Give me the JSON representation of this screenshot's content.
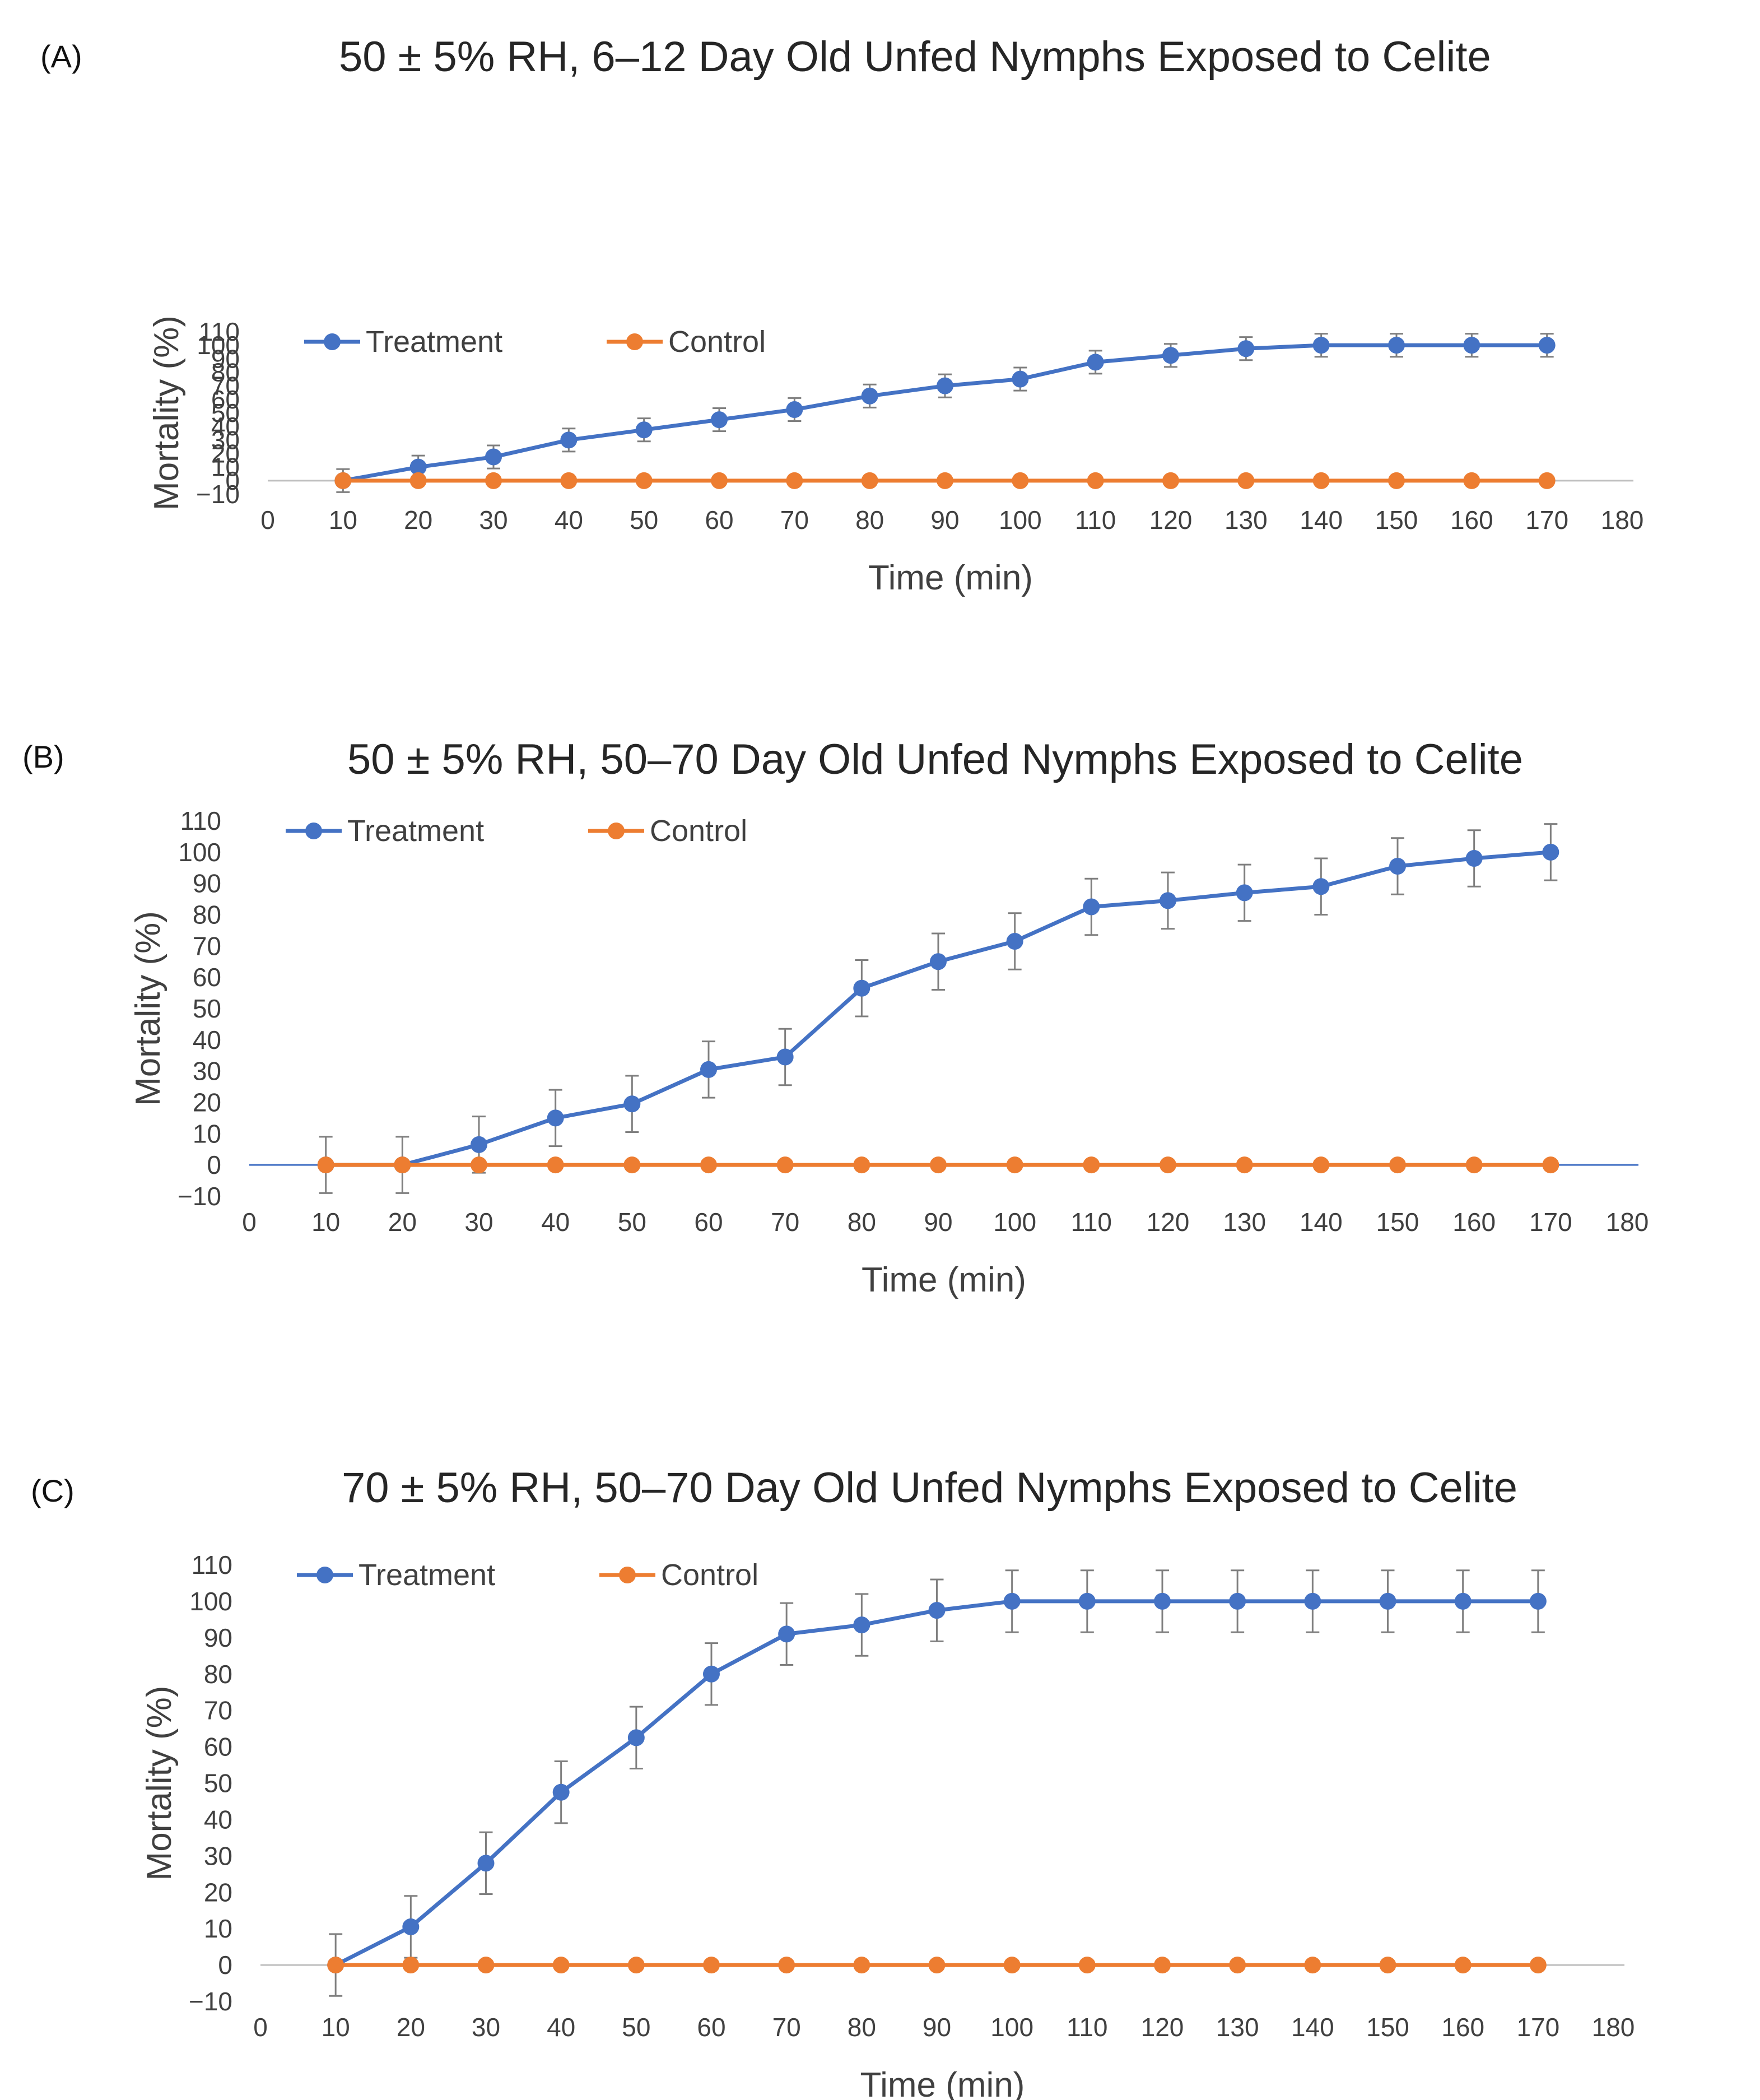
{
  "chart_data": [
    {
      "type": "line",
      "panel_label": "(A)",
      "title": "50 ± 5% RH, 6–12 Day Old Unfed Nymphs Exposed to Celite",
      "xlabel": "Time (min)",
      "ylabel": "Mortality (%)",
      "xlim": [
        0,
        180
      ],
      "ylim": [
        -10,
        110
      ],
      "xticks": [
        0,
        10,
        20,
        30,
        40,
        50,
        60,
        70,
        80,
        90,
        100,
        110,
        120,
        130,
        140,
        150,
        160,
        170,
        180
      ],
      "yticks": [
        -10,
        0,
        10,
        20,
        30,
        40,
        50,
        60,
        70,
        80,
        90,
        100,
        110
      ],
      "x": [
        10,
        20,
        30,
        40,
        50,
        60,
        70,
        80,
        90,
        100,
        110,
        120,
        130,
        140,
        150,
        160,
        170
      ],
      "series": [
        {
          "name": "Treatment",
          "color": "#4472C4",
          "values": [
            0,
            10,
            17.5,
            30,
            37.5,
            45,
            52.5,
            62.5,
            70,
            75,
            87.5,
            92.5,
            97.5,
            100,
            100,
            100,
            100
          ],
          "error": 8.5
        },
        {
          "name": "Control",
          "color": "#ED7D31",
          "values": [
            0,
            0,
            0,
            0,
            0,
            0,
            0,
            0,
            0,
            0,
            0,
            0,
            0,
            0,
            0,
            0,
            0
          ]
        }
      ],
      "legend": "top-left"
    },
    {
      "type": "line",
      "panel_label": "(B)",
      "title": "50 ± 5% RH, 50–70 Day Old Unfed Nymphs Exposed to Celite",
      "xlabel": "Time (min)",
      "ylabel": "Mortality (%)",
      "xlim": [
        0,
        180
      ],
      "ylim": [
        -10,
        110
      ],
      "xticks": [
        0,
        10,
        20,
        30,
        40,
        50,
        60,
        70,
        80,
        90,
        100,
        110,
        120,
        130,
        140,
        150,
        160,
        170,
        180
      ],
      "yticks": [
        -10,
        0,
        10,
        20,
        30,
        40,
        50,
        60,
        70,
        80,
        90,
        100,
        110
      ],
      "x": [
        10,
        20,
        30,
        40,
        50,
        60,
        70,
        80,
        90,
        100,
        110,
        120,
        130,
        140,
        150,
        160,
        170
      ],
      "series": [
        {
          "name": "Treatment",
          "color": "#4472C4",
          "values": [
            0,
            0,
            6.5,
            15,
            19.5,
            30.5,
            34.5,
            56.5,
            65,
            71.5,
            82.5,
            84.5,
            87,
            89,
            95.5,
            98,
            100
          ],
          "error": 9
        },
        {
          "name": "Control",
          "color": "#ED7D31",
          "values": [
            0,
            0,
            0,
            0,
            0,
            0,
            0,
            0,
            0,
            0,
            0,
            0,
            0,
            0,
            0,
            0,
            0
          ]
        }
      ],
      "legend": "top-left"
    },
    {
      "type": "line",
      "panel_label": "(C)",
      "title": "70 ± 5% RH, 50–70 Day Old Unfed Nymphs Exposed to Celite",
      "xlabel": "Time (min)",
      "ylabel": "Mortality (%)",
      "xlim": [
        0,
        180
      ],
      "ylim": [
        -10,
        110
      ],
      "xticks": [
        0,
        10,
        20,
        30,
        40,
        50,
        60,
        70,
        80,
        90,
        100,
        110,
        120,
        130,
        140,
        150,
        160,
        170,
        180
      ],
      "yticks": [
        -10,
        0,
        10,
        20,
        30,
        40,
        50,
        60,
        70,
        80,
        90,
        100,
        110
      ],
      "x": [
        10,
        20,
        30,
        40,
        50,
        60,
        70,
        80,
        90,
        100,
        110,
        120,
        130,
        140,
        150,
        160,
        170
      ],
      "series": [
        {
          "name": "Treatment",
          "color": "#4472C4",
          "values": [
            0,
            10.5,
            28,
            47.5,
            62.5,
            80,
            91,
            93.5,
            97.5,
            100,
            100,
            100,
            100,
            100,
            100,
            100,
            100
          ],
          "error": 8.5
        },
        {
          "name": "Control",
          "color": "#ED7D31",
          "values": [
            0,
            0,
            0,
            0,
            0,
            0,
            0,
            0,
            0,
            0,
            0,
            0,
            0,
            0,
            0,
            0,
            0
          ]
        }
      ],
      "legend": "top-left"
    }
  ]
}
